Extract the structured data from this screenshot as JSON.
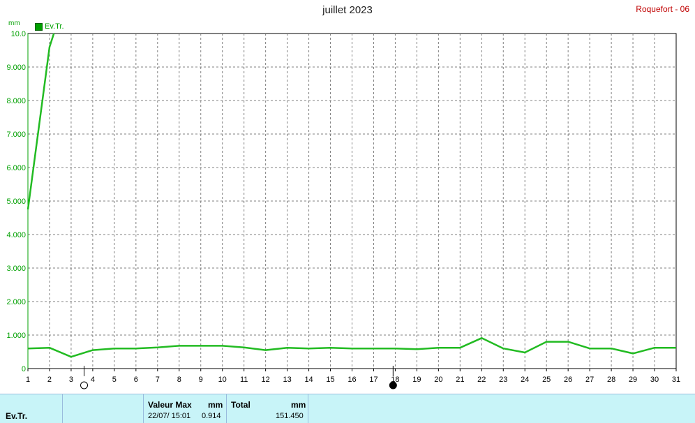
{
  "header": {
    "title": "juillet 2023",
    "station": "Roquefort - 06",
    "unit": "mm",
    "legend_label": "Ev.Tr."
  },
  "chart_data": {
    "type": "line",
    "title": "juillet 2023",
    "ylabel": "mm",
    "xlim": [
      1,
      31
    ],
    "ylim": [
      0,
      10
    ],
    "grid": true,
    "legend": "top-left",
    "colors": {
      "line": "#22bb22",
      "axis": "#00a000",
      "grid": "#808080"
    },
    "y_ticks": [
      "0",
      "1.000",
      "2.000",
      "3.000",
      "4.000",
      "5.000",
      "6.000",
      "7.000",
      "8.000",
      "9.000",
      "10.0"
    ],
    "x_ticks": [
      "1",
      "2",
      "3",
      "4",
      "5",
      "6",
      "7",
      "8",
      "9",
      "10",
      "11",
      "12",
      "13",
      "14",
      "15",
      "16",
      "17",
      "18",
      "19",
      "20",
      "21",
      "22",
      "23",
      "24",
      "25",
      "26",
      "27",
      "28",
      "29",
      "30",
      "31"
    ],
    "series": [
      {
        "name": "Ev.Tr.",
        "x": [
          1,
          2,
          2.2
        ],
        "values": [
          4.75,
          9.6,
          10.0
        ]
      },
      {
        "name": "Ev.Tr.",
        "x": [
          1,
          2,
          3,
          4,
          5,
          6,
          7,
          8,
          9,
          10,
          11,
          12,
          13,
          14,
          15,
          16,
          17,
          18,
          19,
          20,
          21,
          22,
          23,
          24,
          25,
          26,
          27,
          28,
          29,
          30,
          31
        ],
        "values": [
          0.6,
          0.62,
          0.35,
          0.55,
          0.6,
          0.6,
          0.63,
          0.68,
          0.68,
          0.68,
          0.63,
          0.55,
          0.62,
          0.6,
          0.62,
          0.6,
          0.6,
          0.6,
          0.58,
          0.62,
          0.62,
          0.91,
          0.6,
          0.48,
          0.8,
          0.8,
          0.6,
          0.6,
          0.45,
          0.62,
          0.62
        ]
      }
    ],
    "moon_phases": [
      {
        "day": 3.6,
        "phase": "full"
      },
      {
        "day": 17.9,
        "phase": "new"
      }
    ]
  },
  "footer": {
    "series_label": "Ev.Tr.",
    "max_header": "Valeur Max",
    "max_unit": "mm",
    "max_date": "22/07/  15:01",
    "max_value": "0.914",
    "total_header": "Total",
    "total_unit": "mm",
    "total_value": "151.450"
  }
}
